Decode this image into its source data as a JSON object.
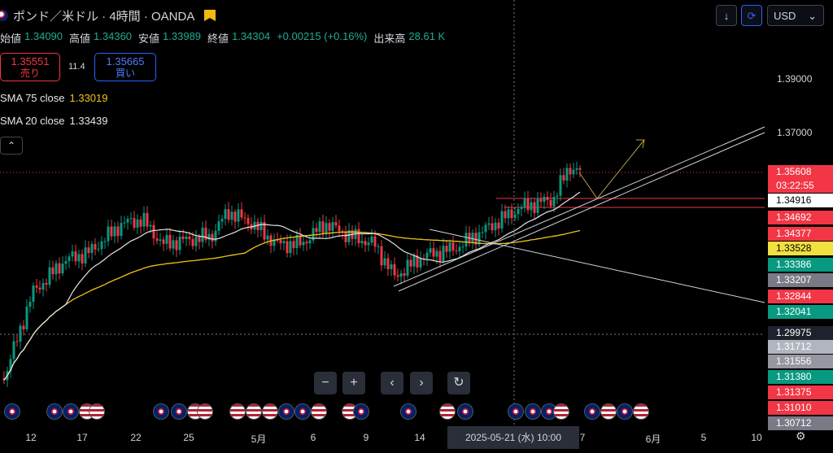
{
  "header": {
    "title": "ポンド／米ドル · 4時間 · OANDA",
    "ohlc": [
      {
        "k": "始値",
        "v": "1.34090"
      },
      {
        "k": "高値",
        "v": "1.34360"
      },
      {
        "k": "安値",
        "v": "1.33989"
      },
      {
        "k": "終値",
        "v": "1.34304"
      },
      {
        "k": "",
        "v": "+0.00215 (+0.16%)"
      },
      {
        "k": "出来高",
        "v": "28.61 K"
      }
    ]
  },
  "trade": {
    "sell_price": "1.35551",
    "sell_label": "売り",
    "spread": "11.4",
    "buy_price": "1.35665",
    "buy_label": "買い"
  },
  "indicators": [
    {
      "name": "SMA 75 close",
      "value": "1.33019",
      "color": "#f0c419"
    },
    {
      "name": "SMA 20 close",
      "value": "1.33439",
      "color": "#e6e6e6"
    }
  ],
  "toolbar": {
    "currency": "USD"
  },
  "price_axis": {
    "ticks": [
      "1.39000",
      "1.37000"
    ],
    "labels": [
      {
        "text": "1.35608",
        "bg": "#f23645",
        "fg": "#ffffff"
      },
      {
        "text": "03:22:55",
        "bg": "#f23645",
        "fg": "#ffffff"
      },
      {
        "text": "1.34916",
        "bg": "#ffffff",
        "fg": "#000000"
      },
      {
        "text": "1.34692",
        "bg": "#f23645",
        "fg": "#ffffff"
      },
      {
        "text": "1.34377",
        "bg": "#f23645",
        "fg": "#ffffff"
      },
      {
        "text": "1.33528",
        "bg": "#f0e040",
        "fg": "#000000"
      },
      {
        "text": "1.33386",
        "bg": "#089981",
        "fg": "#ffffff"
      },
      {
        "text": "1.33207",
        "bg": "#787b86",
        "fg": "#ffffff"
      },
      {
        "text": "1.32844",
        "bg": "#f23645",
        "fg": "#ffffff"
      },
      {
        "text": "1.32041",
        "bg": "#089981",
        "fg": "#ffffff"
      },
      {
        "text": "1.29975",
        "bg": "#1e222d",
        "fg": "#ffffff"
      },
      {
        "text": "1.31712",
        "bg": "#b2b5be",
        "fg": "#ffffff"
      },
      {
        "text": "1.31556",
        "bg": "#9598a1",
        "fg": "#ffffff"
      },
      {
        "text": "1.31380",
        "bg": "#089981",
        "fg": "#ffffff"
      },
      {
        "text": "1.31375",
        "bg": "#f23645",
        "fg": "#ffffff"
      },
      {
        "text": "1.31010",
        "bg": "#f23645",
        "fg": "#ffffff"
      },
      {
        "text": "1.30712",
        "bg": "#787b86",
        "fg": "#ffffff"
      }
    ]
  },
  "time_axis": {
    "labels": [
      "12",
      "17",
      "22",
      "25",
      "5月",
      "6",
      "9",
      "14",
      "7",
      "6月",
      "5",
      "10"
    ],
    "cursor": "2025-05-21 (水)   10:00"
  },
  "controls": [
    "−",
    "+",
    "‹",
    "›",
    "↻"
  ],
  "chart_data": {
    "type": "candlestick",
    "symbol": "GBP/USD",
    "timeframe": "4時間",
    "y_range": [
      1.287,
      1.398
    ],
    "current_price": 1.35608,
    "sma75_last": 1.33019,
    "sma20_last": 1.33439
  }
}
